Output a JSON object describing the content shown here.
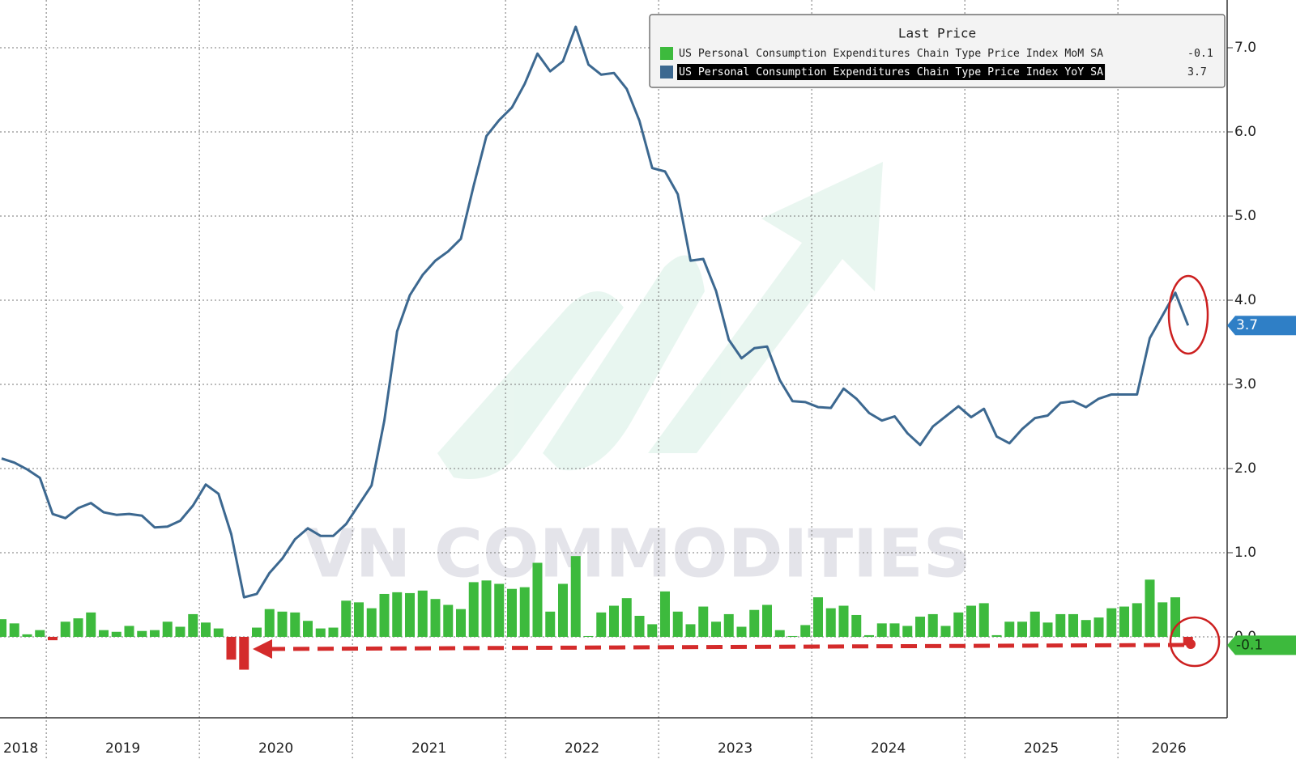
{
  "chart_data": {
    "type": "combo",
    "legend_title": "Last Price",
    "watermark": "VN COMMODITIES",
    "categories": [
      null,
      "2018",
      null,
      null,
      null,
      null,
      null,
      null,
      null,
      "2019",
      null,
      null,
      null,
      null,
      null,
      null,
      null,
      null,
      null,
      null,
      null,
      "2020",
      null,
      null,
      null,
      null,
      null,
      null,
      null,
      null,
      null,
      null,
      null,
      "2021",
      null,
      null,
      null,
      null,
      null,
      null,
      null,
      null,
      null,
      null,
      null,
      "2022",
      null,
      null,
      null,
      null,
      null,
      null,
      null,
      null,
      null,
      null,
      null,
      "2023",
      null,
      null,
      null,
      null,
      null,
      null,
      null,
      null,
      null,
      null,
      null,
      "2024",
      null,
      null,
      null,
      null,
      null,
      null,
      null,
      null,
      null,
      null,
      null,
      "2025",
      null,
      null,
      null,
      null,
      null,
      null,
      null,
      null,
      null,
      "2026",
      null,
      null
    ],
    "series": [
      {
        "name": "US Personal Consumption Expenditures Chain Type Price Index MoM SA",
        "type": "bar",
        "color": "#3dba3d",
        "negative_color": "#d42b2b",
        "values": [
          0.21,
          0.16,
          0.03,
          0.08,
          -0.04,
          0.18,
          0.22,
          0.29,
          0.08,
          0.06,
          0.13,
          0.07,
          0.08,
          0.18,
          0.12,
          0.27,
          0.17,
          0.1,
          -0.27,
          -0.39,
          0.11,
          0.33,
          0.3,
          0.29,
          0.19,
          0.1,
          0.11,
          0.43,
          0.41,
          0.34,
          0.51,
          0.53,
          0.52,
          0.55,
          0.45,
          0.38,
          0.33,
          0.65,
          0.67,
          0.63,
          0.57,
          0.59,
          0.88,
          0.3,
          0.63,
          0.96,
          0.01,
          0.29,
          0.37,
          0.46,
          0.25,
          0.15,
          0.54,
          0.3,
          0.15,
          0.36,
          0.18,
          0.27,
          0.12,
          0.32,
          0.38,
          0.08,
          0.01,
          0.14,
          0.47,
          0.34,
          0.37,
          0.26,
          0.02,
          0.16,
          0.16,
          0.13,
          0.24,
          0.27,
          0.13,
          0.29,
          0.37,
          0.4,
          0.02,
          0.18,
          0.18,
          0.3,
          0.17,
          0.27,
          0.27,
          0.2,
          0.23,
          0.34,
          0.36,
          0.4,
          0.68,
          0.41,
          0.47,
          -0.1
        ]
      },
      {
        "name": "US Personal Consumption Expenditures Chain Type Price Index YoY SA",
        "type": "line",
        "color": "#3c6890",
        "values": [
          2.12,
          2.07,
          1.99,
          1.89,
          1.46,
          1.41,
          1.53,
          1.59,
          1.48,
          1.45,
          1.46,
          1.44,
          1.3,
          1.31,
          1.38,
          1.56,
          1.81,
          1.7,
          1.22,
          0.47,
          0.51,
          0.76,
          0.93,
          1.16,
          1.29,
          1.2,
          1.2,
          1.34,
          1.57,
          1.8,
          2.57,
          3.63,
          4.06,
          4.3,
          4.47,
          4.58,
          4.73,
          5.36,
          5.95,
          6.14,
          6.29,
          6.57,
          6.93,
          6.72,
          6.84,
          7.25,
          6.8,
          6.68,
          6.7,
          6.51,
          6.13,
          5.57,
          5.53,
          5.26,
          4.47,
          4.49,
          4.11,
          3.53,
          3.31,
          3.43,
          3.45,
          3.05,
          2.8,
          2.79,
          2.73,
          2.72,
          2.95,
          2.83,
          2.66,
          2.57,
          2.62,
          2.42,
          2.28,
          2.5,
          2.62,
          2.74,
          2.61,
          2.71,
          2.38,
          2.3,
          2.47,
          2.6,
          2.63,
          2.78,
          2.8,
          2.73,
          2.83,
          2.88,
          2.88,
          2.88,
          3.55,
          3.82,
          4.09,
          3.7
        ]
      }
    ],
    "ylim": [
      -1,
      7.5
    ],
    "yticks": [
      {
        "value": 0,
        "label": "0.0"
      },
      {
        "value": 1,
        "label": "1.0"
      },
      {
        "value": 2,
        "label": "2.0"
      },
      {
        "value": 3,
        "label": "3.0"
      },
      {
        "value": 4,
        "label": "4.0"
      },
      {
        "value": 5,
        "label": "5.0"
      },
      {
        "value": 6,
        "label": "6.0"
      },
      {
        "value": 7,
        "label": "7.0"
      }
    ],
    "grid": true
  }
}
